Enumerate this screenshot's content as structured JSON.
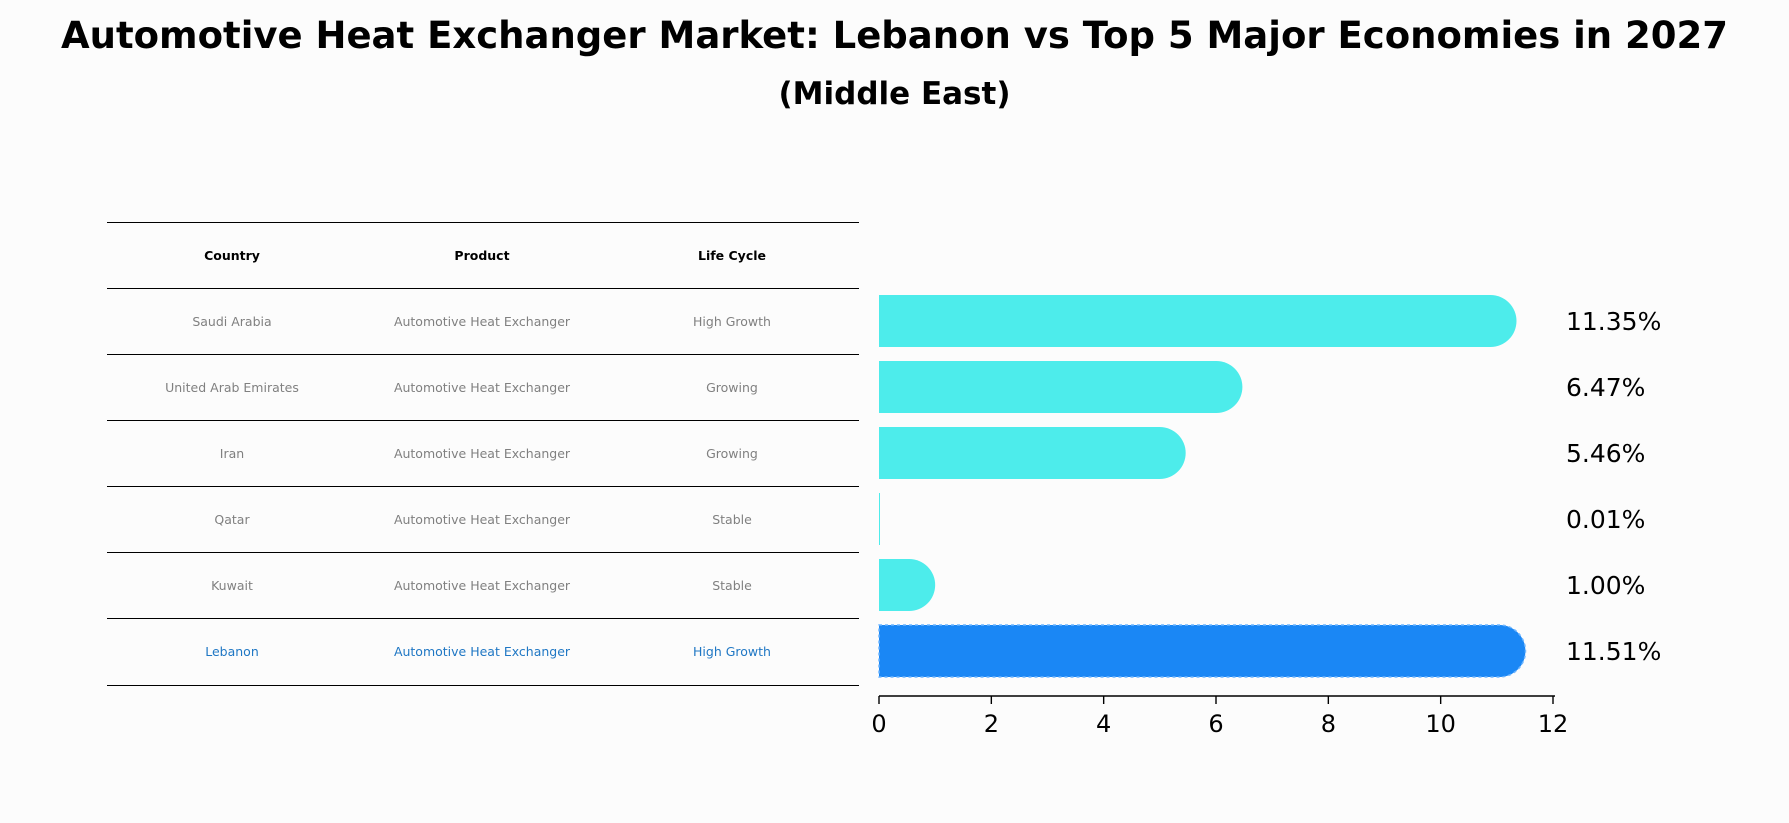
{
  "title": "Automotive Heat Exchanger Market: Lebanon vs Top 5 Major Economies in 2027",
  "subtitle": "(Middle East)",
  "table": {
    "headers": [
      "Country",
      "Product",
      "Life Cycle"
    ],
    "rows": [
      {
        "country": "Saudi Arabia",
        "product": "Automotive Heat Exchanger",
        "life_cycle": "High Growth"
      },
      {
        "country": "United Arab Emirates",
        "product": "Automotive Heat Exchanger",
        "life_cycle": "Growing"
      },
      {
        "country": "Iran",
        "product": "Automotive Heat Exchanger",
        "life_cycle": "Growing"
      },
      {
        "country": "Qatar",
        "product": "Automotive Heat Exchanger",
        "life_cycle": "Stable"
      },
      {
        "country": "Kuwait",
        "product": "Automotive Heat Exchanger",
        "life_cycle": "Stable"
      },
      {
        "country": "Lebanon",
        "product": "Automotive Heat Exchanger",
        "life_cycle": "High Growth"
      }
    ]
  },
  "colors": {
    "bar": "#4deceb",
    "highlight_bar": "#1a87f5",
    "highlight_text": "#1f77c4",
    "muted_text": "#808080"
  },
  "chart_data": {
    "type": "bar",
    "orientation": "horizontal",
    "categories": [
      "Saudi Arabia",
      "United Arab Emirates",
      "Iran",
      "Qatar",
      "Kuwait",
      "Lebanon"
    ],
    "values": [
      11.35,
      6.47,
      5.46,
      0.01,
      1.0,
      11.51
    ],
    "value_labels": [
      "11.35%",
      "6.47%",
      "5.46%",
      "0.01%",
      "1.00%",
      "11.51%"
    ],
    "highlight_category": "Lebanon",
    "xlim": [
      0,
      12
    ],
    "xticks": [
      0,
      2,
      4,
      6,
      8,
      10,
      12
    ],
    "xlabel": "",
    "ylabel": ""
  }
}
